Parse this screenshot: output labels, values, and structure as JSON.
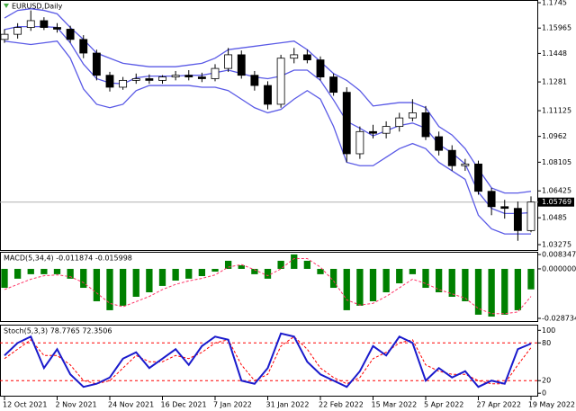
{
  "chart_data": [
    {
      "type": "candlestick",
      "title": "EURUSD,Daily",
      "categories": [
        "12 Oct 2021",
        null,
        null,
        null,
        "2 Nov 2021",
        null,
        null,
        null,
        "24 Nov 2021",
        null,
        null,
        null,
        "16 Dec 2021",
        null,
        null,
        null,
        "7 Jan 2022",
        null,
        null,
        null,
        "31 Jan 2022",
        null,
        null,
        null,
        "22 Feb 2022",
        null,
        null,
        null,
        "15 Mar 2022",
        null,
        null,
        null,
        "5 Apr 2022",
        null,
        null,
        null,
        "27 Apr 2022",
        null,
        null,
        null,
        "19 May 2022"
      ],
      "open": [
        1.153,
        1.156,
        1.16,
        1.164,
        1.16,
        1.159,
        1.153,
        1.145,
        1.132,
        1.125,
        1.129,
        1.13,
        1.129,
        1.131,
        1.132,
        1.131,
        1.13,
        1.136,
        1.144,
        1.132,
        1.126,
        1.115,
        1.142,
        1.144,
        1.141,
        1.131,
        1.122,
        1.086,
        1.099,
        1.098,
        1.102,
        1.107,
        1.11,
        1.096,
        1.088,
        1.079,
        1.08,
        1.064,
        1.055,
        1.054,
        1.041
      ],
      "high": [
        1.159,
        1.1625,
        1.17,
        1.166,
        1.1625,
        1.161,
        1.1555,
        1.147,
        1.134,
        1.131,
        1.133,
        1.1325,
        1.132,
        1.1345,
        1.135,
        1.1335,
        1.1385,
        1.148,
        1.1465,
        1.1345,
        1.1285,
        1.144,
        1.148,
        1.147,
        1.143,
        1.133,
        1.125,
        1.102,
        1.103,
        1.105,
        1.11,
        1.118,
        1.114,
        1.099,
        1.091,
        1.083,
        1.082,
        1.066,
        1.059,
        1.058,
        1.061
      ],
      "low": [
        1.151,
        1.1535,
        1.158,
        1.1585,
        1.157,
        1.151,
        1.142,
        1.129,
        1.1225,
        1.1235,
        1.127,
        1.127,
        1.127,
        1.129,
        1.129,
        1.128,
        1.1285,
        1.134,
        1.13,
        1.123,
        1.112,
        1.113,
        1.139,
        1.139,
        1.129,
        1.12,
        1.081,
        1.083,
        1.095,
        1.095,
        1.099,
        1.105,
        1.094,
        1.085,
        1.076,
        1.076,
        1.062,
        1.05,
        1.048,
        1.035,
        1.04
      ],
      "close": [
        1.156,
        1.16,
        1.164,
        1.16,
        1.159,
        1.153,
        1.145,
        1.132,
        1.125,
        1.129,
        1.13,
        1.129,
        1.131,
        1.132,
        1.131,
        1.13,
        1.136,
        1.144,
        1.132,
        1.126,
        1.115,
        1.142,
        1.144,
        1.141,
        1.131,
        1.122,
        1.086,
        1.099,
        1.098,
        1.102,
        1.107,
        1.11,
        1.096,
        1.088,
        1.079,
        1.08,
        1.064,
        1.055,
        1.054,
        1.041,
        1.0577
      ],
      "bands": {
        "color": "#5a5ae6",
        "upper": [
          1.1655,
          1.17,
          1.171,
          1.17,
          1.168,
          1.16,
          1.153,
          1.145,
          1.142,
          1.139,
          1.138,
          1.137,
          1.137,
          1.137,
          1.138,
          1.139,
          1.142,
          1.147,
          1.148,
          1.149,
          1.15,
          1.151,
          1.152,
          1.147,
          1.14,
          1.133,
          1.129,
          1.123,
          1.114,
          1.115,
          1.116,
          1.116,
          1.113,
          1.102,
          1.097,
          1.089,
          1.077,
          1.066,
          1.063,
          1.063,
          1.064
        ],
        "middle": [
          1.1588,
          1.1605,
          1.1605,
          1.1605,
          1.16,
          1.151,
          1.1385,
          1.13,
          1.1275,
          1.127,
          1.1305,
          1.1315,
          1.1315,
          1.1315,
          1.132,
          1.132,
          1.1335,
          1.135,
          1.133,
          1.131,
          1.13,
          1.1315,
          1.135,
          1.135,
          1.129,
          1.1175,
          1.105,
          1.101,
          1.0965,
          1.0995,
          1.1025,
          1.104,
          1.101,
          1.0915,
          1.0865,
          1.08,
          1.0635,
          1.054,
          1.051,
          1.051,
          1.0515
        ],
        "lower": [
          1.152,
          1.151,
          1.15,
          1.151,
          1.152,
          1.142,
          1.124,
          1.115,
          1.113,
          1.115,
          1.123,
          1.126,
          1.126,
          1.126,
          1.126,
          1.125,
          1.125,
          1.123,
          1.118,
          1.113,
          1.11,
          1.112,
          1.118,
          1.123,
          1.118,
          1.102,
          1.081,
          1.079,
          1.079,
          1.084,
          1.089,
          1.092,
          1.089,
          1.081,
          1.076,
          1.071,
          1.05,
          1.042,
          1.039,
          1.039,
          1.039
        ]
      },
      "up_color": "#ffffff",
      "down_color": "#000000",
      "last_price": 1.05769,
      "ylim": [
        1.0296,
        1.1761
      ],
      "yticks": [
        1.1745,
        1.15965,
        1.1448,
        1.1281,
        1.11125,
        1.0962,
        1.08105,
        1.06425,
        1.0485,
        1.03275
      ]
    },
    {
      "type": "bar",
      "title": "MACD(5,34,4) -0.011874 -0.015998",
      "color": "#008000",
      "values": [
        -0.011,
        -0.0057,
        -0.0031,
        -0.0031,
        -0.0031,
        -0.0057,
        -0.011,
        -0.0188,
        -0.024,
        -0.0214,
        -0.0162,
        -0.0136,
        -0.0099,
        -0.0068,
        -0.0057,
        -0.0042,
        -0.0016,
        0.0047,
        0.0021,
        -0.0031,
        -0.0057,
        0.0047,
        0.0084,
        0.0047,
        -0.0031,
        -0.011,
        -0.024,
        -0.0214,
        -0.0188,
        -0.0136,
        -0.0084,
        -0.0031,
        -0.011,
        -0.0136,
        -0.0162,
        -0.0188,
        -0.0266,
        -0.0277,
        -0.0266,
        -0.024,
        -0.0119
      ],
      "signal": {
        "color": "#ff3366",
        "values": [
          -0.012,
          -0.009,
          -0.006,
          -0.004,
          -0.0035,
          -0.0045,
          -0.008,
          -0.014,
          -0.02,
          -0.022,
          -0.019,
          -0.016,
          -0.012,
          -0.009,
          -0.007,
          -0.0055,
          -0.0035,
          0.001,
          0.0025,
          -0.0005,
          -0.004,
          0.0,
          0.006,
          0.006,
          0.001,
          -0.007,
          -0.018,
          -0.021,
          -0.02,
          -0.016,
          -0.011,
          -0.006,
          -0.0085,
          -0.012,
          -0.0145,
          -0.017,
          -0.023,
          -0.026,
          -0.026,
          -0.025,
          -0.016
        ]
      },
      "ylim": [
        -0.0303,
        0.0099
      ],
      "yticks": [
        0.008347,
        {
          "value": 0,
          "label": "0.000000"
        },
        -0.028734
      ]
    },
    {
      "type": "line",
      "title": "Stoch(5,3,3) 78.7765 72.3506",
      "main": {
        "color": "#1a1acc",
        "values": [
          60,
          80,
          90,
          40,
          70,
          30,
          10,
          15,
          25,
          55,
          65,
          40,
          55,
          70,
          45,
          75,
          90,
          85,
          20,
          15,
          40,
          95,
          90,
          50,
          30,
          20,
          10,
          35,
          75,
          60,
          90,
          80,
          20,
          40,
          25,
          35,
          10,
          20,
          15,
          70,
          78.8
        ]
      },
      "signal": {
        "color": "#ff0000",
        "values": [
          55,
          70,
          85,
          60,
          60,
          45,
          20,
          15,
          20,
          40,
          60,
          50,
          50,
          60,
          55,
          65,
          80,
          85,
          45,
          20,
          30,
          75,
          90,
          70,
          40,
          25,
          15,
          25,
          55,
          65,
          80,
          85,
          45,
          35,
          30,
          30,
          20,
          15,
          15,
          45,
          72.4
        ]
      },
      "levels": [
        80,
        20
      ],
      "ylim": [
        -4,
        109
      ],
      "yticks": [
        100,
        80,
        20,
        0
      ]
    }
  ]
}
